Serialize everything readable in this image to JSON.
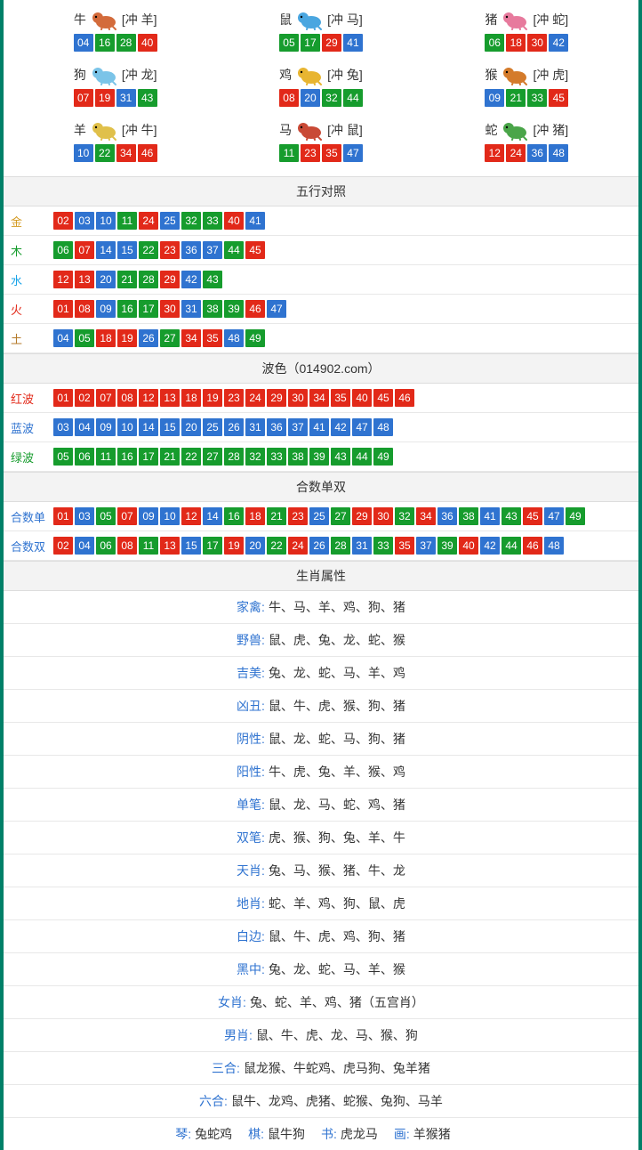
{
  "colors": {
    "red": "#e22919",
    "blue": "#2f73d0",
    "green": "#169c2d",
    "teal_border": "#008068",
    "hdr_bg": "#f3f3f3",
    "border": "#e8e8e8"
  },
  "zodiac": [
    {
      "name": "牛",
      "chong": "[冲 羊]",
      "icon_color": "#d36b3b",
      "balls": [
        {
          "n": "04",
          "c": "blue"
        },
        {
          "n": "16",
          "c": "green"
        },
        {
          "n": "28",
          "c": "green"
        },
        {
          "n": "40",
          "c": "red"
        }
      ]
    },
    {
      "name": "鼠",
      "chong": "[冲 马]",
      "icon_color": "#4aa6e0",
      "balls": [
        {
          "n": "05",
          "c": "green"
        },
        {
          "n": "17",
          "c": "green"
        },
        {
          "n": "29",
          "c": "red"
        },
        {
          "n": "41",
          "c": "blue"
        }
      ]
    },
    {
      "name": "猪",
      "chong": "[冲 蛇]",
      "icon_color": "#e77a9d",
      "balls": [
        {
          "n": "06",
          "c": "green"
        },
        {
          "n": "18",
          "c": "red"
        },
        {
          "n": "30",
          "c": "red"
        },
        {
          "n": "42",
          "c": "blue"
        }
      ]
    },
    {
      "name": "狗",
      "chong": "[冲 龙]",
      "icon_color": "#7bc4e8",
      "balls": [
        {
          "n": "07",
          "c": "red"
        },
        {
          "n": "19",
          "c": "red"
        },
        {
          "n": "31",
          "c": "blue"
        },
        {
          "n": "43",
          "c": "green"
        }
      ]
    },
    {
      "name": "鸡",
      "chong": "[冲 兔]",
      "icon_color": "#e8b531",
      "balls": [
        {
          "n": "08",
          "c": "red"
        },
        {
          "n": "20",
          "c": "blue"
        },
        {
          "n": "32",
          "c": "green"
        },
        {
          "n": "44",
          "c": "green"
        }
      ]
    },
    {
      "name": "猴",
      "chong": "[冲 虎]",
      "icon_color": "#d47b2b",
      "balls": [
        {
          "n": "09",
          "c": "blue"
        },
        {
          "n": "21",
          "c": "green"
        },
        {
          "n": "33",
          "c": "green"
        },
        {
          "n": "45",
          "c": "red"
        }
      ]
    },
    {
      "name": "羊",
      "chong": "[冲 牛]",
      "icon_color": "#e0c04a",
      "balls": [
        {
          "n": "10",
          "c": "blue"
        },
        {
          "n": "22",
          "c": "green"
        },
        {
          "n": "34",
          "c": "red"
        },
        {
          "n": "46",
          "c": "red"
        }
      ]
    },
    {
      "name": "马",
      "chong": "[冲 鼠]",
      "icon_color": "#c94a36",
      "balls": [
        {
          "n": "11",
          "c": "green"
        },
        {
          "n": "23",
          "c": "red"
        },
        {
          "n": "35",
          "c": "red"
        },
        {
          "n": "47",
          "c": "blue"
        }
      ]
    },
    {
      "name": "蛇",
      "chong": "[冲 猪]",
      "icon_color": "#4aa549",
      "balls": [
        {
          "n": "12",
          "c": "red"
        },
        {
          "n": "24",
          "c": "red"
        },
        {
          "n": "36",
          "c": "blue"
        },
        {
          "n": "48",
          "c": "blue"
        }
      ]
    }
  ],
  "wuxing_header": "五行对照",
  "wuxing": [
    {
      "label": "金",
      "label_class": "lbl-gold",
      "balls": [
        {
          "n": "02",
          "c": "red"
        },
        {
          "n": "03",
          "c": "blue"
        },
        {
          "n": "10",
          "c": "blue"
        },
        {
          "n": "11",
          "c": "green"
        },
        {
          "n": "24",
          "c": "red"
        },
        {
          "n": "25",
          "c": "blue"
        },
        {
          "n": "32",
          "c": "green"
        },
        {
          "n": "33",
          "c": "green"
        },
        {
          "n": "40",
          "c": "red"
        },
        {
          "n": "41",
          "c": "blue"
        }
      ]
    },
    {
      "label": "木",
      "label_class": "lbl-wood",
      "balls": [
        {
          "n": "06",
          "c": "green"
        },
        {
          "n": "07",
          "c": "red"
        },
        {
          "n": "14",
          "c": "blue"
        },
        {
          "n": "15",
          "c": "blue"
        },
        {
          "n": "22",
          "c": "green"
        },
        {
          "n": "23",
          "c": "red"
        },
        {
          "n": "36",
          "c": "blue"
        },
        {
          "n": "37",
          "c": "blue"
        },
        {
          "n": "44",
          "c": "green"
        },
        {
          "n": "45",
          "c": "red"
        }
      ]
    },
    {
      "label": "水",
      "label_class": "lbl-water",
      "balls": [
        {
          "n": "12",
          "c": "red"
        },
        {
          "n": "13",
          "c": "red"
        },
        {
          "n": "20",
          "c": "blue"
        },
        {
          "n": "21",
          "c": "green"
        },
        {
          "n": "28",
          "c": "green"
        },
        {
          "n": "29",
          "c": "red"
        },
        {
          "n": "42",
          "c": "blue"
        },
        {
          "n": "43",
          "c": "green"
        }
      ]
    },
    {
      "label": "火",
      "label_class": "lbl-fire",
      "balls": [
        {
          "n": "01",
          "c": "red"
        },
        {
          "n": "08",
          "c": "red"
        },
        {
          "n": "09",
          "c": "blue"
        },
        {
          "n": "16",
          "c": "green"
        },
        {
          "n": "17",
          "c": "green"
        },
        {
          "n": "30",
          "c": "red"
        },
        {
          "n": "31",
          "c": "blue"
        },
        {
          "n": "38",
          "c": "green"
        },
        {
          "n": "39",
          "c": "green"
        },
        {
          "n": "46",
          "c": "red"
        },
        {
          "n": "47",
          "c": "blue"
        }
      ]
    },
    {
      "label": "土",
      "label_class": "lbl-earth",
      "balls": [
        {
          "n": "04",
          "c": "blue"
        },
        {
          "n": "05",
          "c": "green"
        },
        {
          "n": "18",
          "c": "red"
        },
        {
          "n": "19",
          "c": "red"
        },
        {
          "n": "26",
          "c": "blue"
        },
        {
          "n": "27",
          "c": "green"
        },
        {
          "n": "34",
          "c": "red"
        },
        {
          "n": "35",
          "c": "red"
        },
        {
          "n": "48",
          "c": "blue"
        },
        {
          "n": "49",
          "c": "green"
        }
      ]
    }
  ],
  "bose_header": "波色（014902.com）",
  "bose": [
    {
      "label": "红波",
      "label_class": "lbl-red",
      "balls": [
        {
          "n": "01",
          "c": "red"
        },
        {
          "n": "02",
          "c": "red"
        },
        {
          "n": "07",
          "c": "red"
        },
        {
          "n": "08",
          "c": "red"
        },
        {
          "n": "12",
          "c": "red"
        },
        {
          "n": "13",
          "c": "red"
        },
        {
          "n": "18",
          "c": "red"
        },
        {
          "n": "19",
          "c": "red"
        },
        {
          "n": "23",
          "c": "red"
        },
        {
          "n": "24",
          "c": "red"
        },
        {
          "n": "29",
          "c": "red"
        },
        {
          "n": "30",
          "c": "red"
        },
        {
          "n": "34",
          "c": "red"
        },
        {
          "n": "35",
          "c": "red"
        },
        {
          "n": "40",
          "c": "red"
        },
        {
          "n": "45",
          "c": "red"
        },
        {
          "n": "46",
          "c": "red"
        }
      ]
    },
    {
      "label": "蓝波",
      "label_class": "lbl-blue",
      "balls": [
        {
          "n": "03",
          "c": "blue"
        },
        {
          "n": "04",
          "c": "blue"
        },
        {
          "n": "09",
          "c": "blue"
        },
        {
          "n": "10",
          "c": "blue"
        },
        {
          "n": "14",
          "c": "blue"
        },
        {
          "n": "15",
          "c": "blue"
        },
        {
          "n": "20",
          "c": "blue"
        },
        {
          "n": "25",
          "c": "blue"
        },
        {
          "n": "26",
          "c": "blue"
        },
        {
          "n": "31",
          "c": "blue"
        },
        {
          "n": "36",
          "c": "blue"
        },
        {
          "n": "37",
          "c": "blue"
        },
        {
          "n": "41",
          "c": "blue"
        },
        {
          "n": "42",
          "c": "blue"
        },
        {
          "n": "47",
          "c": "blue"
        },
        {
          "n": "48",
          "c": "blue"
        }
      ]
    },
    {
      "label": "绿波",
      "label_class": "lbl-green",
      "balls": [
        {
          "n": "05",
          "c": "green"
        },
        {
          "n": "06",
          "c": "green"
        },
        {
          "n": "11",
          "c": "green"
        },
        {
          "n": "16",
          "c": "green"
        },
        {
          "n": "17",
          "c": "green"
        },
        {
          "n": "21",
          "c": "green"
        },
        {
          "n": "22",
          "c": "green"
        },
        {
          "n": "27",
          "c": "green"
        },
        {
          "n": "28",
          "c": "green"
        },
        {
          "n": "32",
          "c": "green"
        },
        {
          "n": "33",
          "c": "green"
        },
        {
          "n": "38",
          "c": "green"
        },
        {
          "n": "39",
          "c": "green"
        },
        {
          "n": "43",
          "c": "green"
        },
        {
          "n": "44",
          "c": "green"
        },
        {
          "n": "49",
          "c": "green"
        }
      ]
    }
  ],
  "heshu_header": "合数单双",
  "heshu": [
    {
      "label": "合数单",
      "label_class": "lbl-link",
      "balls": [
        {
          "n": "01",
          "c": "red"
        },
        {
          "n": "03",
          "c": "blue"
        },
        {
          "n": "05",
          "c": "green"
        },
        {
          "n": "07",
          "c": "red"
        },
        {
          "n": "09",
          "c": "blue"
        },
        {
          "n": "10",
          "c": "blue"
        },
        {
          "n": "12",
          "c": "red"
        },
        {
          "n": "14",
          "c": "blue"
        },
        {
          "n": "16",
          "c": "green"
        },
        {
          "n": "18",
          "c": "red"
        },
        {
          "n": "21",
          "c": "green"
        },
        {
          "n": "23",
          "c": "red"
        },
        {
          "n": "25",
          "c": "blue"
        },
        {
          "n": "27",
          "c": "green"
        },
        {
          "n": "29",
          "c": "red"
        },
        {
          "n": "30",
          "c": "red"
        },
        {
          "n": "32",
          "c": "green"
        },
        {
          "n": "34",
          "c": "red"
        },
        {
          "n": "36",
          "c": "blue"
        },
        {
          "n": "38",
          "c": "green"
        },
        {
          "n": "41",
          "c": "blue"
        },
        {
          "n": "43",
          "c": "green"
        },
        {
          "n": "45",
          "c": "red"
        },
        {
          "n": "47",
          "c": "blue"
        },
        {
          "n": "49",
          "c": "green"
        }
      ]
    },
    {
      "label": "合数双",
      "label_class": "lbl-link",
      "balls": [
        {
          "n": "02",
          "c": "red"
        },
        {
          "n": "04",
          "c": "blue"
        },
        {
          "n": "06",
          "c": "green"
        },
        {
          "n": "08",
          "c": "red"
        },
        {
          "n": "11",
          "c": "green"
        },
        {
          "n": "13",
          "c": "red"
        },
        {
          "n": "15",
          "c": "blue"
        },
        {
          "n": "17",
          "c": "green"
        },
        {
          "n": "19",
          "c": "red"
        },
        {
          "n": "20",
          "c": "blue"
        },
        {
          "n": "22",
          "c": "green"
        },
        {
          "n": "24",
          "c": "red"
        },
        {
          "n": "26",
          "c": "blue"
        },
        {
          "n": "28",
          "c": "green"
        },
        {
          "n": "31",
          "c": "blue"
        },
        {
          "n": "33",
          "c": "green"
        },
        {
          "n": "35",
          "c": "red"
        },
        {
          "n": "37",
          "c": "blue"
        },
        {
          "n": "39",
          "c": "green"
        },
        {
          "n": "40",
          "c": "red"
        },
        {
          "n": "42",
          "c": "blue"
        },
        {
          "n": "44",
          "c": "green"
        },
        {
          "n": "46",
          "c": "red"
        },
        {
          "n": "48",
          "c": "blue"
        }
      ]
    }
  ],
  "attr_header": "生肖属性",
  "attrs": [
    {
      "k": "家禽:",
      "v": "牛、马、羊、鸡、狗、猪"
    },
    {
      "k": "野兽:",
      "v": "鼠、虎、兔、龙、蛇、猴"
    },
    {
      "k": "吉美:",
      "v": "兔、龙、蛇、马、羊、鸡"
    },
    {
      "k": "凶丑:",
      "v": "鼠、牛、虎、猴、狗、猪"
    },
    {
      "k": "阴性:",
      "v": "鼠、龙、蛇、马、狗、猪"
    },
    {
      "k": "阳性:",
      "v": "牛、虎、兔、羊、猴、鸡"
    },
    {
      "k": "单笔:",
      "v": "鼠、龙、马、蛇、鸡、猪"
    },
    {
      "k": "双笔:",
      "v": "虎、猴、狗、兔、羊、牛"
    },
    {
      "k": "天肖:",
      "v": "兔、马、猴、猪、牛、龙"
    },
    {
      "k": "地肖:",
      "v": "蛇、羊、鸡、狗、鼠、虎"
    },
    {
      "k": "白边:",
      "v": "鼠、牛、虎、鸡、狗、猪"
    },
    {
      "k": "黑中:",
      "v": "兔、龙、蛇、马、羊、猴"
    },
    {
      "k": "女肖:",
      "v": "兔、蛇、羊、鸡、猪（五宫肖）"
    },
    {
      "k": "男肖:",
      "v": "鼠、牛、虎、龙、马、猴、狗"
    },
    {
      "k": "三合:",
      "v": "鼠龙猴、牛蛇鸡、虎马狗、兔羊猪"
    },
    {
      "k": "六合:",
      "v": "鼠牛、龙鸡、虎猪、蛇猴、兔狗、马羊"
    }
  ],
  "footer_line": {
    "items": [
      {
        "k": "琴:",
        "v": "兔蛇鸡"
      },
      {
        "k": "棋:",
        "v": "鼠牛狗"
      },
      {
        "k": "书:",
        "v": "虎龙马"
      },
      {
        "k": "画:",
        "v": "羊猴猪"
      }
    ]
  }
}
